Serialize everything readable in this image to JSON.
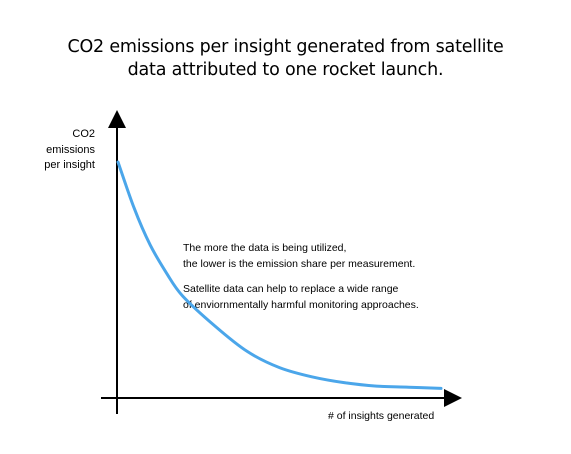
{
  "chart_data": {
    "type": "line",
    "title_lines": [
      "CO2 emissions per insight generated from satellite",
      "data attributed to one rocket launch."
    ],
    "ylabel_lines": [
      "CO2",
      "emissions",
      "per insight"
    ],
    "xlabel": "# of insights generated",
    "annotations": [
      {
        "lines": [
          "The more the data is being utilized,",
          "the lower is the emission share per measurement."
        ]
      },
      {
        "lines": [
          "Satellite data can help to replace a wide range",
          "of enviornmentally harmful monitoring approaches."
        ]
      }
    ],
    "grid": false,
    "legend": "none",
    "series": [
      {
        "color": "#4ba6ea",
        "x": [
          0,
          0.05,
          0.1,
          0.15,
          0.2,
          0.3,
          0.4,
          0.5,
          0.6,
          0.7,
          0.8,
          0.9,
          1.0
        ],
        "y": [
          1.0,
          0.8,
          0.64,
          0.52,
          0.42,
          0.29,
          0.18,
          0.11,
          0.07,
          0.045,
          0.03,
          0.025,
          0.02
        ]
      }
    ]
  }
}
